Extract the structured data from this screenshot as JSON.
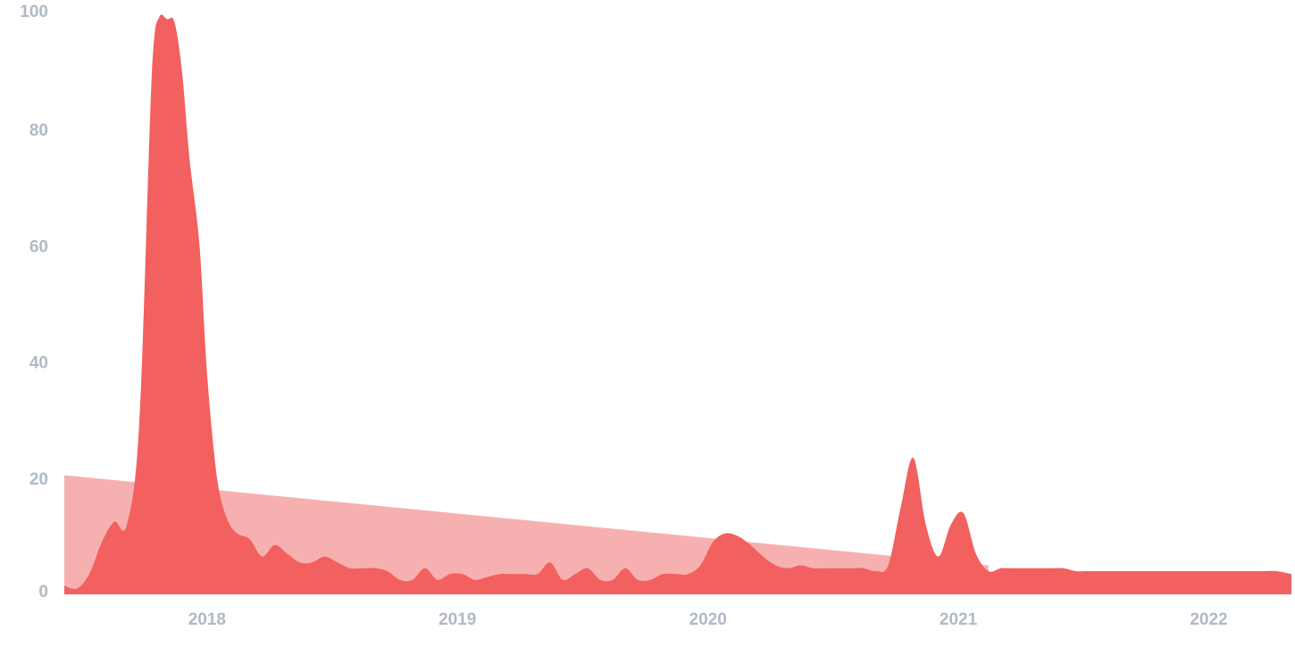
{
  "chart_data": {
    "type": "area",
    "title": "",
    "xlabel": "",
    "ylabel": "",
    "xlim": [
      2017.43,
      2022.33
    ],
    "ylim": [
      0,
      100
    ],
    "y_ticks": [
      0,
      20,
      40,
      60,
      80,
      100
    ],
    "x_ticks": [
      2018,
      2019,
      2020,
      2021,
      2022
    ],
    "grid": false,
    "legend": "none",
    "colors": {
      "series": "#f26060",
      "trend": "#f7b0b0",
      "tick_label": "#b0bac6"
    },
    "series": [
      {
        "x": [
          2017.43,
          2017.48,
          2017.53,
          2017.58,
          2017.63,
          2017.68,
          2017.73,
          2017.78,
          2017.81,
          2017.84,
          2017.87,
          2017.9,
          2017.93,
          2017.97,
          2018.0,
          2018.04,
          2018.08,
          2018.12,
          2018.17,
          2018.22,
          2018.27,
          2018.32,
          2018.37,
          2018.42,
          2018.47,
          2018.52,
          2018.57,
          2018.62,
          2018.67,
          2018.72,
          2018.77,
          2018.82,
          2018.87,
          2018.92,
          2018.97,
          2019.02,
          2019.07,
          2019.12,
          2019.17,
          2019.22,
          2019.27,
          2019.32,
          2019.37,
          2019.42,
          2019.47,
          2019.52,
          2019.57,
          2019.62,
          2019.67,
          2019.72,
          2019.77,
          2019.82,
          2019.87,
          2019.92,
          2019.97,
          2020.02,
          2020.07,
          2020.12,
          2020.17,
          2020.22,
          2020.27,
          2020.32,
          2020.37,
          2020.42,
          2020.47,
          2020.52,
          2020.57,
          2020.62,
          2020.67,
          2020.72,
          2020.77,
          2020.82,
          2020.87,
          2020.92,
          2020.97,
          2021.02,
          2021.07,
          2021.12,
          2021.17,
          2021.22,
          2021.27,
          2021.32,
          2021.37,
          2021.42,
          2021.47,
          2021.52,
          2021.57,
          2021.62,
          2021.67,
          2021.7,
          2021.73,
          2021.76,
          2021.8,
          2021.84,
          2021.88,
          2021.92,
          2021.97,
          2022.02,
          2022.07,
          2022.12,
          2022.17,
          2022.22,
          2022.27,
          2022.33
        ],
        "values": [
          1.5,
          1.0,
          3.5,
          9.0,
          12.5,
          12.0,
          30.0,
          90.0,
          99.5,
          99.0,
          98.5,
          90.0,
          75.0,
          60.0,
          38.0,
          20.0,
          13.0,
          10.5,
          9.5,
          6.5,
          8.5,
          7.0,
          5.5,
          5.5,
          6.5,
          5.5,
          4.5,
          4.5,
          4.5,
          4.0,
          2.5,
          2.5,
          4.5,
          2.5,
          3.5,
          3.5,
          2.5,
          3.0,
          3.5,
          3.5,
          3.5,
          3.5,
          5.5,
          2.5,
          3.5,
          4.5,
          2.5,
          2.5,
          4.5,
          2.5,
          2.5,
          3.5,
          3.5,
          3.5,
          5.0,
          9.0,
          10.5,
          10.0,
          8.5,
          6.5,
          5.0,
          4.5,
          5.0,
          4.5,
          4.5,
          4.5,
          4.5,
          4.5,
          4.0,
          5.0,
          15.0,
          23.5,
          12.0,
          6.5,
          12.0,
          14.0,
          7.0,
          4.0,
          4.5,
          4.5,
          4.5,
          4.5,
          4.5,
          4.5,
          4.0,
          4.0,
          4.0,
          4.0,
          4.0,
          4.0,
          4.0,
          4.0,
          4.0,
          4.0,
          4.0,
          4.0,
          4.0,
          4.0,
          4.0,
          4.0,
          4.0,
          4.0,
          4.0,
          3.5
        ]
      },
      {
        "x": [
          2017.43,
          2021.12
        ],
        "values": [
          20.5,
          5.0
        ]
      }
    ]
  }
}
